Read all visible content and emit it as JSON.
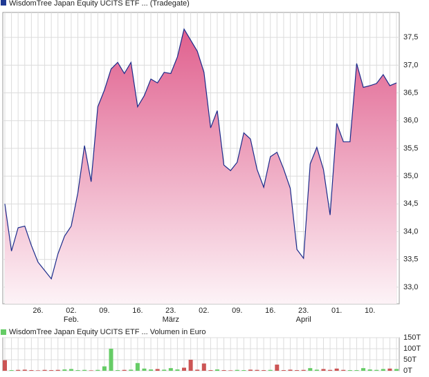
{
  "chart_data": [
    {
      "type": "area",
      "legend": "WisdomTree Japan Equity UCITS ETF ... (Tradegate)",
      "legend_color": "#1f3a93",
      "color": "#1a2a8a",
      "fill_top": "#e0608e",
      "fill_bottom": "#fdf3f7",
      "categories": [
        null,
        null,
        null,
        null,
        null,
        "26.",
        null,
        null,
        null,
        null,
        "02.",
        null,
        null,
        null,
        null,
        "09.",
        null,
        null,
        null,
        null,
        "16.",
        null,
        null,
        null,
        null,
        "23.",
        null,
        null,
        null,
        null,
        "02.",
        null,
        null,
        null,
        null,
        "09.",
        null,
        null,
        null,
        null,
        "16.",
        null,
        null,
        null,
        null,
        "23.",
        null,
        null,
        null,
        null,
        "01.",
        null,
        null,
        null,
        null,
        "10.",
        null,
        null,
        null,
        null
      ],
      "months": [
        null,
        null,
        null,
        null,
        null,
        null,
        null,
        null,
        null,
        null,
        "Feb.",
        null,
        null,
        null,
        null,
        null,
        null,
        null,
        null,
        null,
        null,
        null,
        null,
        null,
        null,
        "März",
        null,
        null,
        null,
        null,
        null,
        null,
        null,
        null,
        null,
        null,
        null,
        null,
        null,
        null,
        null,
        null,
        null,
        null,
        null,
        "April",
        null,
        null,
        null,
        null,
        null,
        null,
        null,
        null,
        null,
        null,
        null,
        null,
        null,
        null
      ],
      "values": [
        34.5,
        33.65,
        34.07,
        34.1,
        33.75,
        33.45,
        33.3,
        33.15,
        33.6,
        33.92,
        34.1,
        34.7,
        35.55,
        34.9,
        36.25,
        36.55,
        36.93,
        37.05,
        36.85,
        37.05,
        36.25,
        36.45,
        36.75,
        36.68,
        36.87,
        36.85,
        37.15,
        37.65,
        37.45,
        37.25,
        36.87,
        35.87,
        36.18,
        35.2,
        35.1,
        35.25,
        35.78,
        35.67,
        35.12,
        34.8,
        35.35,
        35.43,
        35.13,
        34.78,
        33.68,
        33.52,
        35.22,
        35.52,
        35.12,
        34.3,
        35.95,
        35.62,
        35.62,
        37.03,
        36.6,
        36.63,
        36.67,
        36.83,
        36.63,
        36.68
      ],
      "ylim": [
        32.7,
        37.95
      ],
      "yticks": [
        {
          "value": 33,
          "label": "33,0"
        },
        {
          "value": 33.5,
          "label": "33,5"
        },
        {
          "value": 34,
          "label": "34,0"
        },
        {
          "value": 34.5,
          "label": "34,5"
        },
        {
          "value": 35,
          "label": "35,0"
        },
        {
          "value": 35.5,
          "label": "35,5"
        },
        {
          "value": 36,
          "label": "36,0"
        },
        {
          "value": 36.5,
          "label": "36,5"
        },
        {
          "value": 37,
          "label": "37,0"
        },
        {
          "value": 37.5,
          "label": "37,5"
        }
      ],
      "grid": true
    },
    {
      "type": "bar",
      "legend": "WisdomTree Japan Equity UCITS ETF ... Volumen in Euro",
      "legend_color": "#66cc66",
      "values": [
        48,
        3,
        4,
        5,
        3,
        2,
        4,
        3,
        4,
        6,
        8,
        3,
        4,
        2,
        4,
        20,
        100,
        3,
        4,
        5,
        35,
        10,
        6,
        8,
        5,
        12,
        6,
        14,
        50,
        5,
        33,
        3,
        6,
        3,
        2,
        4,
        3,
        5,
        4,
        3,
        4,
        28,
        3,
        5,
        3,
        4,
        12,
        5,
        8,
        4,
        10,
        4,
        3,
        3,
        12,
        6,
        4,
        8,
        10,
        8
      ],
      "colors": [
        "#cc5555",
        "#66cc66",
        "#cc5555",
        "#cc5555",
        "#cc5555",
        "#cc5555",
        "#cc5555",
        "#cc5555",
        "#cc5555",
        "#66cc66",
        "#66cc66",
        "#66cc66",
        "#66cc66",
        "#cc5555",
        "#66cc66",
        "#66cc66",
        "#66cc66",
        "#66cc66",
        "#cc5555",
        "#66cc66",
        "#66cc66",
        "#66cc66",
        "#66cc66",
        "#cc5555",
        "#66cc66",
        "#66cc66",
        "#66cc66",
        "#cc5555",
        "#cc5555",
        "#cc5555",
        "#cc5555",
        "#cc5555",
        "#66cc66",
        "#cc5555",
        "#cc5555",
        "#66cc66",
        "#66cc66",
        "#cc5555",
        "#cc5555",
        "#cc5555",
        "#66cc66",
        "#cc5555",
        "#cc5555",
        "#cc5555",
        "#cc5555",
        "#cc5555",
        "#66cc66",
        "#66cc66",
        "#cc5555",
        "#cc5555",
        "#cc5555",
        "#cc5555",
        "#66cc66",
        "#66cc66",
        "#66cc66",
        "#66cc66",
        "#66cc66",
        "#66cc66",
        "#cc5555",
        "#66cc66"
      ],
      "ylim": [
        0,
        150
      ],
      "yticks": [
        {
          "value": 0,
          "label": "0T"
        },
        {
          "value": 50,
          "label": "50T"
        },
        {
          "value": 100,
          "label": "100T"
        },
        {
          "value": 150,
          "label": "150T"
        }
      ],
      "grid": true
    }
  ]
}
